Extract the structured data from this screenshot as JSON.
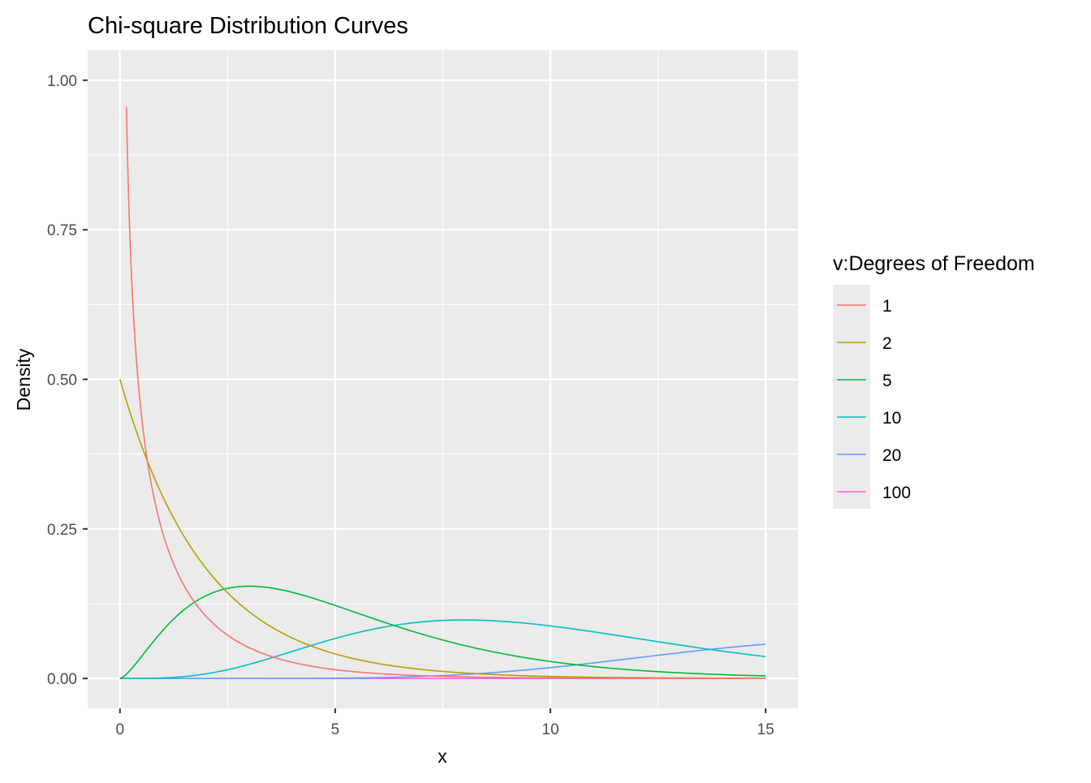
{
  "chart_data": {
    "type": "line",
    "title": "Chi-square Distribution Curves",
    "xlabel": "x",
    "ylabel": "Density",
    "xlim": [
      -0.75,
      15.75
    ],
    "ylim": [
      -0.05,
      1.05
    ],
    "x_ticks": [
      0,
      5,
      10,
      15
    ],
    "x_tick_labels": [
      "0",
      "5",
      "10",
      "15"
    ],
    "x_minor_ticks": [
      2.5,
      7.5,
      12.5
    ],
    "y_ticks": [
      0,
      0.25,
      0.5,
      0.75,
      1
    ],
    "y_tick_labels": [
      "0.00",
      "0.25",
      "0.50",
      "0.75",
      "1.00"
    ],
    "y_minor_ticks": [
      0.125,
      0.375,
      0.625,
      0.875
    ],
    "grid": true,
    "legend": {
      "title": "v:Degrees of Freedom",
      "position": "right"
    },
    "x_range": [
      0,
      15
    ],
    "series": [
      {
        "name": "1",
        "df": 1,
        "color": "#F8766D",
        "x_start": 0.15
      },
      {
        "name": "2",
        "df": 2,
        "color": "#B79F00",
        "x_start": 0
      },
      {
        "name": "5",
        "df": 5,
        "color": "#00BA38",
        "x_start": 0
      },
      {
        "name": "10",
        "df": 10,
        "color": "#00BFC4",
        "x_start": 0
      },
      {
        "name": "20",
        "df": 20,
        "color": "#619CFF",
        "x_start": 0
      },
      {
        "name": "100",
        "df": 100,
        "color": "#F564E3",
        "x_start": 0
      }
    ]
  }
}
